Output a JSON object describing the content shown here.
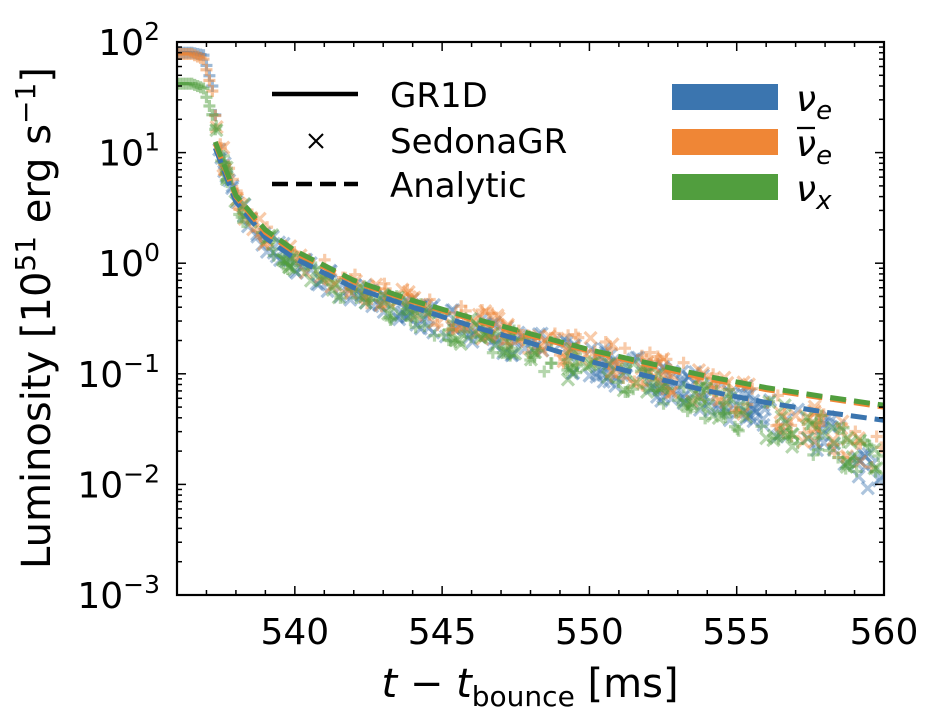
{
  "chart_data": {
    "type": "scatter",
    "xlabel": "t − t_bounce [ms]",
    "xlabel_parts": {
      "t": "t",
      "minus": " − ",
      "t2": "t",
      "sub": "bounce",
      "unit": " [ms]"
    },
    "ylabel": "Luminosity [10^51 erg s^-1]",
    "ylabel_parts": {
      "pre": "Luminosity [10",
      "exp": "51",
      "mid": " erg s",
      "exp2": "−1",
      "post": "]"
    },
    "xlim": [
      536,
      560
    ],
    "ylim": [
      0.001,
      100
    ],
    "yscale": "log",
    "grid": false,
    "x_ticks": [
      "540",
      "545",
      "550",
      "555",
      "560"
    ],
    "x_tick_values": [
      540,
      545,
      550,
      555,
      560
    ],
    "y_ticks": [
      {
        "base": "10",
        "exp": "−3",
        "value": 0.001
      },
      {
        "base": "10",
        "exp": "−2",
        "value": 0.01
      },
      {
        "base": "10",
        "exp": "−1",
        "value": 0.1
      },
      {
        "base": "10",
        "exp": "0",
        "value": 1
      },
      {
        "base": "10",
        "exp": "1",
        "value": 10
      },
      {
        "base": "10",
        "exp": "2",
        "value": 100
      }
    ],
    "legend_style": {
      "placement": "top",
      "entries": [
        {
          "label": "GR1D",
          "marker": "solid-line"
        },
        {
          "label": "SedonaGR",
          "marker": "x"
        },
        {
          "label": "Analytic",
          "marker": "dashed-line"
        }
      ]
    },
    "legend_species": {
      "placement": "top-right",
      "entries": [
        {
          "label": "ν",
          "sub": "e",
          "bar": false,
          "color": "#3b75af"
        },
        {
          "label": "ν",
          "sub": "e",
          "bar": true,
          "color": "#ef8636"
        },
        {
          "label": "ν",
          "sub": "x",
          "bar": false,
          "color": "#519e3e"
        }
      ]
    },
    "series": [
      {
        "color": "#3b75af",
        "analytic": [
          [
            537.3,
            11.0
          ],
          [
            538,
            3.6
          ],
          [
            539,
            1.7
          ],
          [
            540,
            1.1
          ],
          [
            542,
            0.6
          ],
          [
            544,
            0.4
          ],
          [
            546,
            0.27
          ],
          [
            548,
            0.19
          ],
          [
            550,
            0.13
          ],
          [
            552,
            0.095
          ],
          [
            554,
            0.07
          ],
          [
            556,
            0.055
          ],
          [
            558,
            0.045
          ],
          [
            560,
            0.038
          ]
        ],
        "gr1d": [
          [
            536.0,
            80
          ],
          [
            536.5,
            80
          ],
          [
            536.9,
            76
          ],
          [
            537.2,
            40
          ],
          [
            537.4,
            12
          ],
          [
            538,
            3.4
          ],
          [
            539,
            1.6
          ],
          [
            540,
            1.0
          ],
          [
            542,
            0.55
          ],
          [
            544,
            0.36
          ],
          [
            546,
            0.25
          ],
          [
            548,
            0.18
          ],
          [
            550,
            0.13
          ],
          [
            552,
            0.09
          ],
          [
            554,
            0.065
          ],
          [
            556,
            0.045
          ],
          [
            558,
            0.028
          ],
          [
            559,
            0.018
          ],
          [
            560,
            0.011
          ]
        ]
      },
      {
        "color": "#ef8636",
        "analytic": [
          [
            537.3,
            12.0
          ],
          [
            538,
            4.0
          ],
          [
            539,
            1.9
          ],
          [
            540,
            1.25
          ],
          [
            542,
            0.68
          ],
          [
            544,
            0.45
          ],
          [
            546,
            0.31
          ],
          [
            548,
            0.22
          ],
          [
            550,
            0.16
          ],
          [
            552,
            0.12
          ],
          [
            554,
            0.09
          ],
          [
            556,
            0.072
          ],
          [
            558,
            0.06
          ],
          [
            560,
            0.05
          ]
        ],
        "gr1d": [
          [
            536.0,
            78
          ],
          [
            536.5,
            78
          ],
          [
            536.9,
            70
          ],
          [
            537.2,
            36
          ],
          [
            537.4,
            13
          ],
          [
            538,
            3.8
          ],
          [
            539,
            1.8
          ],
          [
            540,
            1.15
          ],
          [
            542,
            0.62
          ],
          [
            544,
            0.42
          ],
          [
            546,
            0.3
          ],
          [
            548,
            0.21
          ],
          [
            550,
            0.15
          ],
          [
            552,
            0.11
          ],
          [
            554,
            0.075
          ],
          [
            556,
            0.05
          ],
          [
            558,
            0.032
          ],
          [
            559,
            0.022
          ],
          [
            560,
            0.016
          ]
        ]
      },
      {
        "color": "#519e3e",
        "analytic": [
          [
            537.3,
            12.5
          ],
          [
            538,
            4.1
          ],
          [
            539,
            2.0
          ],
          [
            540,
            1.3
          ],
          [
            542,
            0.7
          ],
          [
            544,
            0.46
          ],
          [
            546,
            0.32
          ],
          [
            548,
            0.23
          ],
          [
            550,
            0.165
          ],
          [
            552,
            0.125
          ],
          [
            554,
            0.095
          ],
          [
            556,
            0.075
          ],
          [
            558,
            0.062
          ],
          [
            560,
            0.052
          ]
        ],
        "gr1d": [
          [
            536.0,
            42
          ],
          [
            536.5,
            42
          ],
          [
            536.9,
            38
          ],
          [
            537.2,
            22
          ],
          [
            537.4,
            12
          ],
          [
            538,
            3.5
          ],
          [
            539,
            1.6
          ],
          [
            540,
            1.0
          ],
          [
            542,
            0.52
          ],
          [
            544,
            0.34
          ],
          [
            546,
            0.23
          ],
          [
            548,
            0.16
          ],
          [
            550,
            0.11
          ],
          [
            552,
            0.08
          ],
          [
            554,
            0.055
          ],
          [
            556,
            0.038
          ],
          [
            558,
            0.026
          ],
          [
            559,
            0.02
          ],
          [
            560,
            0.015
          ]
        ]
      }
    ]
  }
}
